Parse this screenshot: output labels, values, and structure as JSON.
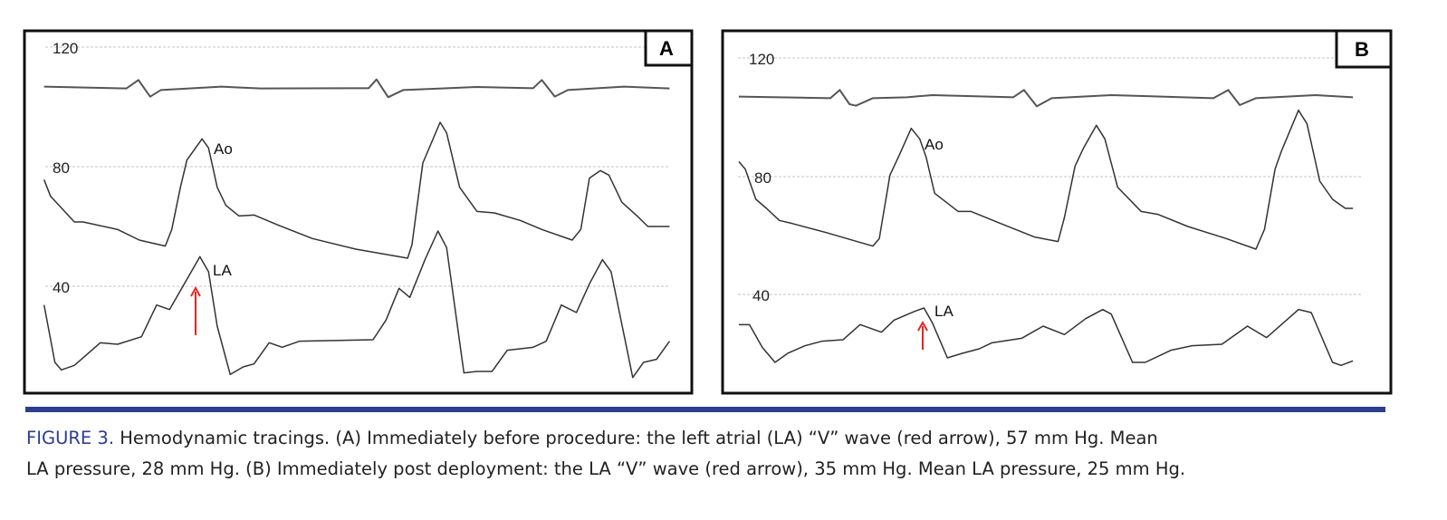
{
  "panels": [
    {
      "label": "A",
      "y_ticks": [
        "120",
        "80",
        "40"
      ],
      "trace_labels": {
        "aortic": "Ao",
        "left_atrial": "LA"
      }
    },
    {
      "label": "B",
      "y_ticks": [
        "120",
        "80",
        "40"
      ],
      "trace_labels": {
        "aortic": "Ao",
        "left_atrial": "LA"
      }
    }
  ],
  "caption": {
    "figure_label": "FIGURE 3.",
    "line1": "Hemodynamic tracings. (A) Immediately before procedure: the left atrial (LA) “V” wave (red arrow), 57 mm Hg. Mean",
    "line2": "LA pressure, 28 mm Hg. (B) Immediately post deployment: the LA “V” wave (red arrow), 35 mm Hg. Mean LA pressure, 25 mm Hg."
  },
  "colors": {
    "accent": "#2d3e8f",
    "arrow": "#e8231f",
    "trace": "#333333"
  }
}
